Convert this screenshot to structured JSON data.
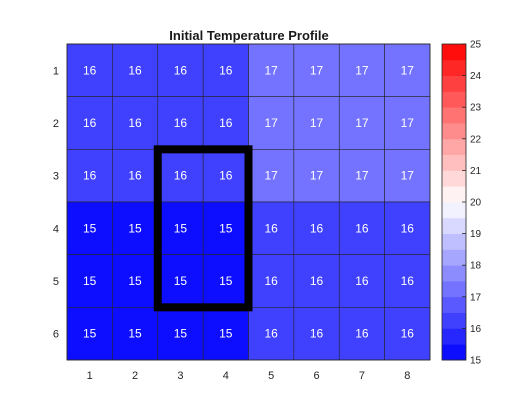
{
  "chart_data": {
    "type": "heatmap",
    "title": "Initial Temperature Profile",
    "x_ticks": [
      1,
      2,
      3,
      4,
      5,
      6,
      7,
      8
    ],
    "y_ticks": [
      1,
      2,
      3,
      4,
      5,
      6
    ],
    "values": [
      [
        16,
        16,
        16,
        16,
        17,
        17,
        17,
        17
      ],
      [
        16,
        16,
        16,
        16,
        17,
        17,
        17,
        17
      ],
      [
        16,
        16,
        16,
        16,
        17,
        17,
        17,
        17
      ],
      [
        15,
        15,
        15,
        15,
        16,
        16,
        16,
        16
      ],
      [
        15,
        15,
        15,
        15,
        16,
        16,
        16,
        16
      ],
      [
        15,
        15,
        15,
        15,
        16,
        16,
        16,
        16
      ]
    ],
    "clim": [
      15,
      25
    ],
    "colorbar": {
      "ticks": [
        15,
        16,
        17,
        18,
        19,
        20,
        21,
        22,
        23,
        24,
        25
      ],
      "levels": 20,
      "colors": {
        "low": "#0000ff",
        "mid": "#ffffff",
        "high": "#ff0000"
      }
    },
    "highlight": {
      "col_start": 3,
      "col_end": 4,
      "row_start": 3,
      "row_end": 5,
      "color": "#000000"
    },
    "grid": true
  }
}
